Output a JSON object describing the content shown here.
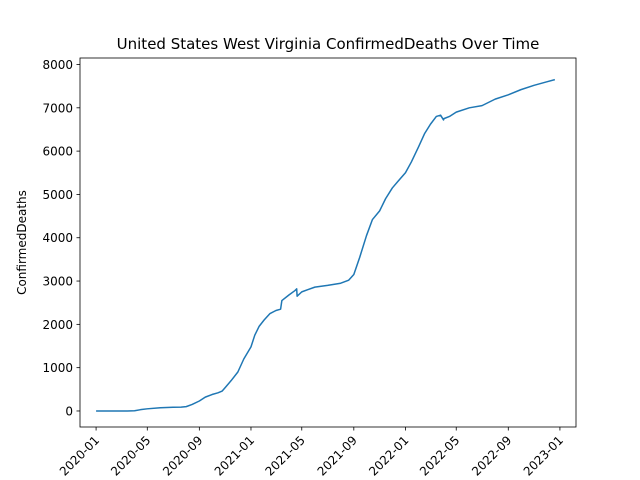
{
  "chart_data": {
    "type": "line",
    "title": "United States West Virginia ConfirmedDeaths Over Time",
    "xlabel": "",
    "ylabel": "ConfirmedDeaths",
    "xlim": [
      "2019-11-24",
      "2023-02-08"
    ],
    "ylim": [
      -370,
      8150
    ],
    "grid": false,
    "x_ticks": [
      "2020-01",
      "2020-05",
      "2020-09",
      "2021-01",
      "2021-05",
      "2021-09",
      "2022-01",
      "2022-05",
      "2022-09",
      "2023-01"
    ],
    "y_ticks": [
      0,
      1000,
      2000,
      3000,
      4000,
      5000,
      6000,
      7000,
      8000
    ],
    "series": [
      {
        "color": "#1f77b4",
        "x": [
          "2020-01-01",
          "2020-03-15",
          "2020-04-01",
          "2020-04-15",
          "2020-05-01",
          "2020-06-01",
          "2020-07-01",
          "2020-07-20",
          "2020-08-01",
          "2020-08-15",
          "2020-09-01",
          "2020-09-15",
          "2020-10-01",
          "2020-10-15",
          "2020-10-25",
          "2020-11-01",
          "2020-11-15",
          "2020-12-01",
          "2020-12-15",
          "2021-01-01",
          "2021-01-10",
          "2021-01-20",
          "2021-02-01",
          "2021-02-15",
          "2021-03-01",
          "2021-03-12",
          "2021-03-15",
          "2021-04-01",
          "2021-04-15",
          "2021-04-19",
          "2021-04-20",
          "2021-05-01",
          "2021-05-15",
          "2021-06-01",
          "2021-07-01",
          "2021-08-01",
          "2021-08-20",
          "2021-09-01",
          "2021-09-15",
          "2021-10-01",
          "2021-10-15",
          "2021-11-01",
          "2021-11-15",
          "2021-12-01",
          "2021-12-15",
          "2022-01-01",
          "2022-01-15",
          "2022-02-01",
          "2022-02-15",
          "2022-03-01",
          "2022-03-15",
          "2022-03-25",
          "2022-04-01",
          "2022-04-02",
          "2022-04-15",
          "2022-05-01",
          "2022-06-01",
          "2022-07-01",
          "2022-08-01",
          "2022-09-01",
          "2022-10-01",
          "2022-11-01",
          "2022-12-01",
          "2022-12-20"
        ],
        "values": [
          0,
          0,
          5,
          30,
          50,
          75,
          85,
          90,
          100,
          150,
          230,
          320,
          380,
          420,
          460,
          540,
          700,
          900,
          1200,
          1480,
          1750,
          1950,
          2100,
          2250,
          2320,
          2350,
          2550,
          2680,
          2780,
          2820,
          2650,
          2750,
          2800,
          2860,
          2900,
          2950,
          3020,
          3150,
          3550,
          4050,
          4420,
          4620,
          4900,
          5150,
          5310,
          5500,
          5750,
          6100,
          6400,
          6620,
          6800,
          6830,
          6720,
          6750,
          6800,
          6900,
          7000,
          7050,
          7200,
          7300,
          7420,
          7520,
          7600,
          7650
        ]
      }
    ]
  }
}
